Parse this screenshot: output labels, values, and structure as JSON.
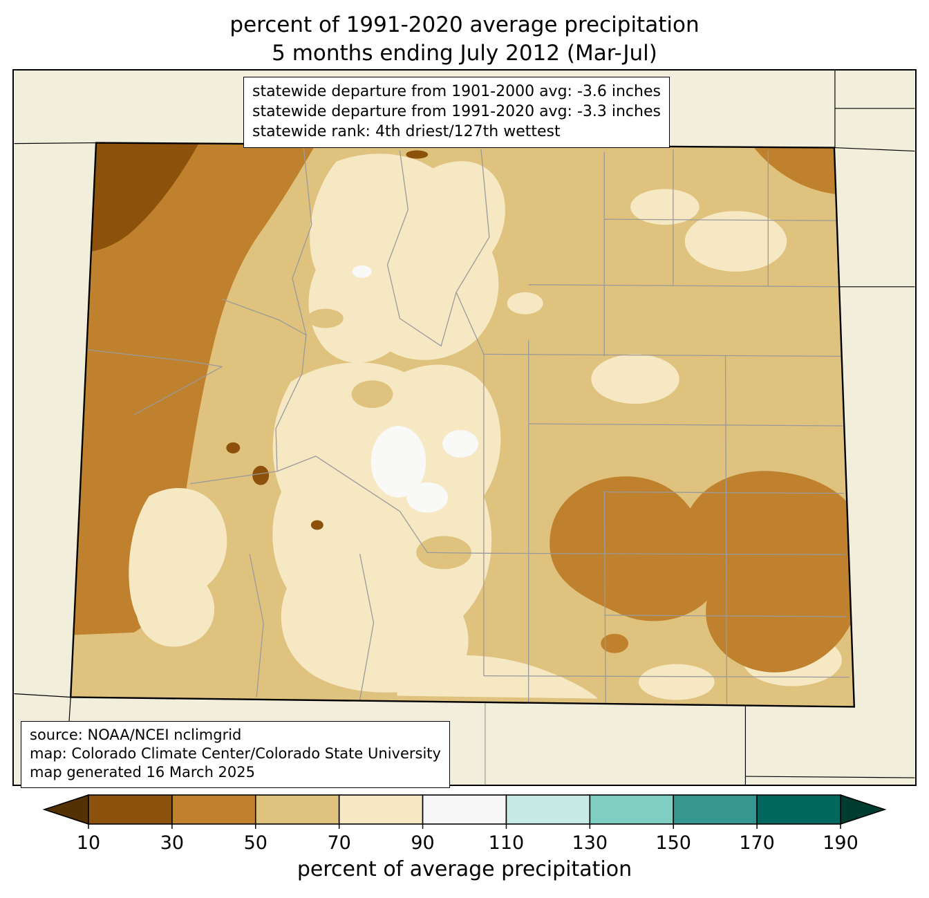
{
  "title": {
    "line1": "percent of 1991-2020 average precipitation",
    "line2": "5 months ending July 2012 (Mar-Jul)"
  },
  "stats_box": {
    "lines": [
      "statewide departure from 1901-2000 avg: -3.6 inches",
      "statewide departure from 1991-2020 avg: -3.3 inches",
      "statewide rank: 4th driest/127th wettest"
    ]
  },
  "source_box": {
    "lines": [
      "source: NOAA/NCEI nclimgrid",
      "map: Colorado Climate Center/Colorado State University",
      "map generated 16 March 2025"
    ]
  },
  "colorbar": {
    "label": "percent of average precipitation",
    "ticks": [
      "10",
      "30",
      "50",
      "70",
      "90",
      "110",
      "130",
      "150",
      "170",
      "190"
    ],
    "segment_colors": [
      "#8c510a",
      "#bf812d",
      "#dfc27d",
      "#f6e8c3",
      "#f7f7f7",
      "#c7eae5",
      "#80cdc1",
      "#35978f",
      "#01665e"
    ],
    "under_arrow_color": "#543005",
    "over_arrow_color": "#003c30"
  },
  "map": {
    "region": "Colorado",
    "palette": {
      "background": "#f1eedb",
      "pct_under_10": "#543005",
      "pct_10_30": "#8c510a",
      "pct_30_50": "#bf812d",
      "pct_50_70": "#dfc27d",
      "pct_70_90": "#f6e8c3",
      "pct_90_110": "#f9f9f7",
      "county_line": "#9a9a9a",
      "state_line": "#000000"
    }
  }
}
